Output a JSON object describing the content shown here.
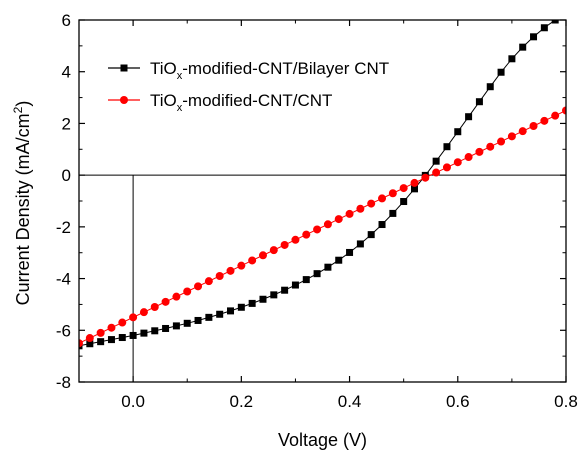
{
  "chart_data": {
    "type": "line",
    "title": "",
    "xlabel": "Voltage (V)",
    "ylabel_main": "Current Density (mA/cm",
    "ylabel_sup": "2",
    "ylabel_close": ")",
    "xlim": [
      -0.1,
      0.8
    ],
    "ylim": [
      -8,
      6
    ],
    "x_ticks": [
      0.0,
      0.2,
      0.4,
      0.6,
      0.8
    ],
    "x_tick_labels": [
      "0.0",
      "0.2",
      "0.4",
      "0.6",
      "0.8"
    ],
    "y_ticks": [
      -8,
      -6,
      -4,
      -2,
      0,
      2,
      4,
      6
    ],
    "y_tick_labels": [
      "-8",
      "-6",
      "-4",
      "-2",
      "0",
      "2",
      "4",
      "6"
    ],
    "grid": false,
    "legend_position": "top-left",
    "reference_lines": {
      "horizontal_y": 0,
      "vertical_x": 0
    },
    "series": [
      {
        "name_pre": "TiO",
        "name_sub": "x",
        "name_post": "-modified-CNT/Bilayer CNT",
        "color": "#000000",
        "marker": "square",
        "x": [
          -0.1,
          -0.08,
          -0.06,
          -0.04,
          -0.02,
          0.0,
          0.02,
          0.04,
          0.06,
          0.08,
          0.1,
          0.12,
          0.14,
          0.16,
          0.18,
          0.2,
          0.22,
          0.24,
          0.26,
          0.28,
          0.3,
          0.32,
          0.34,
          0.36,
          0.38,
          0.4,
          0.42,
          0.44,
          0.46,
          0.48,
          0.5,
          0.52,
          0.54,
          0.56,
          0.58,
          0.6,
          0.62,
          0.64,
          0.66,
          0.68,
          0.7,
          0.72,
          0.74,
          0.76,
          0.78,
          0.8
        ],
        "y": [
          -6.6,
          -6.52,
          -6.44,
          -6.36,
          -6.28,
          -6.2,
          -6.11,
          -6.02,
          -5.93,
          -5.83,
          -5.73,
          -5.62,
          -5.5,
          -5.38,
          -5.25,
          -5.11,
          -4.96,
          -4.8,
          -4.63,
          -4.45,
          -4.25,
          -4.04,
          -3.81,
          -3.56,
          -3.29,
          -2.99,
          -2.66,
          -2.3,
          -1.91,
          -1.48,
          -1.02,
          -0.53,
          -0.01,
          0.54,
          1.1,
          1.68,
          2.26,
          2.84,
          3.42,
          3.98,
          4.5,
          4.95,
          5.35,
          5.7,
          6.0,
          6.27
        ]
      },
      {
        "name_pre": "TiO",
        "name_sub": "x",
        "name_post": "-modified-CNT/CNT",
        "color": "#ff0000",
        "marker": "circle",
        "x": [
          -0.1,
          -0.08,
          -0.06,
          -0.04,
          -0.02,
          0.0,
          0.02,
          0.04,
          0.06,
          0.08,
          0.1,
          0.12,
          0.14,
          0.16,
          0.18,
          0.2,
          0.22,
          0.24,
          0.26,
          0.28,
          0.3,
          0.32,
          0.34,
          0.36,
          0.38,
          0.4,
          0.42,
          0.44,
          0.46,
          0.48,
          0.5,
          0.52,
          0.54,
          0.56,
          0.58,
          0.6,
          0.62,
          0.64,
          0.66,
          0.68,
          0.7,
          0.72,
          0.74,
          0.76,
          0.78,
          0.8
        ],
        "y": [
          -6.5,
          -6.3,
          -6.1,
          -5.9,
          -5.7,
          -5.5,
          -5.3,
          -5.1,
          -4.9,
          -4.7,
          -4.5,
          -4.3,
          -4.1,
          -3.9,
          -3.7,
          -3.5,
          -3.3,
          -3.1,
          -2.9,
          -2.7,
          -2.5,
          -2.3,
          -2.1,
          -1.9,
          -1.7,
          -1.5,
          -1.3,
          -1.1,
          -0.9,
          -0.7,
          -0.5,
          -0.3,
          -0.1,
          0.1,
          0.3,
          0.5,
          0.7,
          0.9,
          1.1,
          1.3,
          1.5,
          1.7,
          1.9,
          2.1,
          2.3,
          2.5
        ]
      }
    ]
  }
}
